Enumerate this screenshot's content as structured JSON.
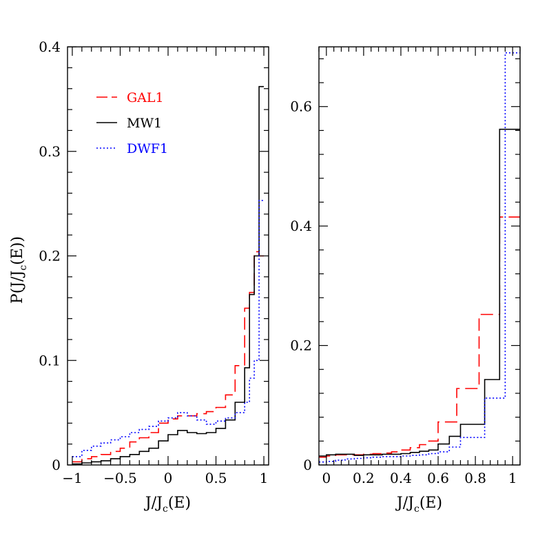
{
  "figure": {
    "ylabel": "P(J/J_c(E))",
    "ylabel_parts": {
      "a": "P(J/J",
      "sub": "c",
      "b": "(E))"
    },
    "xlabel_parts": {
      "a": "J/J",
      "sub": "c",
      "b": "(E)"
    }
  },
  "chart_data": [
    {
      "type": "line",
      "step": true,
      "xlabel": "J/J_c(E)",
      "ylabel": "P(J/J_c(E))",
      "xlim": [
        -1.05,
        1.05
      ],
      "ylim": [
        0,
        0.4
      ],
      "xticks": [
        -1,
        -0.5,
        0,
        0.5,
        1
      ],
      "xtick_labels": [
        "−1",
        "−0.5",
        "0",
        "0.5",
        "1"
      ],
      "yticks": [
        0,
        0.1,
        0.2,
        0.3,
        0.4
      ],
      "ytick_labels": [
        "0",
        "0.1",
        "0.2",
        "0.3",
        "0.4"
      ],
      "legend": {
        "position": "top-left"
      },
      "bin_edges": [
        -1,
        -0.9,
        -0.8,
        -0.7,
        -0.6,
        -0.5,
        -0.4,
        -0.3,
        -0.2,
        -0.1,
        0,
        0.1,
        0.2,
        0.3,
        0.4,
        0.5,
        0.6,
        0.7,
        0.8,
        0.85,
        0.9,
        0.95,
        1.0
      ],
      "series": [
        {
          "name": "GAL1",
          "color": "#ff0000",
          "style": "dashed",
          "values": [
            0.003,
            0.006,
            0.008,
            0.01,
            0.013,
            0.016,
            0.022,
            0.026,
            0.031,
            0.04,
            0.044,
            0.047,
            0.047,
            0.049,
            0.051,
            0.055,
            0.067,
            0.095,
            0.15,
            0.165,
            0.204,
            0.2
          ]
        },
        {
          "name": "MW1",
          "color": "#000000",
          "style": "solid",
          "values": [
            0.001,
            0.002,
            0.003,
            0.004,
            0.006,
            0.008,
            0.01,
            0.013,
            0.016,
            0.023,
            0.029,
            0.033,
            0.031,
            0.03,
            0.031,
            0.035,
            0.043,
            0.06,
            0.093,
            0.163,
            0.2,
            0.362
          ]
        },
        {
          "name": "DWF1",
          "color": "#0000ff",
          "style": "dotted",
          "values": [
            0.008,
            0.014,
            0.018,
            0.021,
            0.024,
            0.027,
            0.031,
            0.034,
            0.037,
            0.042,
            0.045,
            0.05,
            0.047,
            0.043,
            0.039,
            0.042,
            0.045,
            0.05,
            0.06,
            0.083,
            0.1,
            0.253
          ]
        }
      ]
    },
    {
      "type": "line",
      "step": true,
      "xlabel": "J/J_c(E)",
      "xlim": [
        -0.04,
        1.04
      ],
      "ylim": [
        0,
        0.7
      ],
      "xticks": [
        0,
        0.2,
        0.4,
        0.6,
        0.8,
        1
      ],
      "xtick_labels": [
        "0",
        "0.2",
        "0.4",
        "0.6",
        "0.8",
        "1"
      ],
      "yticks": [
        0,
        0.2,
        0.4,
        0.6
      ],
      "ytick_labels": [
        "0",
        "0.2",
        "0.4",
        "0.6"
      ],
      "bin_edges": [
        -0.04,
        0.0,
        0.05,
        0.1,
        0.15,
        0.2,
        0.25,
        0.3,
        0.35,
        0.4,
        0.45,
        0.5,
        0.55,
        0.6,
        0.62,
        0.66,
        0.7,
        0.72,
        0.78,
        0.82,
        0.85,
        0.89,
        0.93,
        0.96,
        1.0,
        1.04
      ],
      "series": [
        {
          "name": "GAL1",
          "color": "#ff0000",
          "style": "dashed",
          "values": [
            0.013,
            0.015,
            0.017,
            0.017,
            0.017,
            0.018,
            0.019,
            0.02,
            0.022,
            0.025,
            0.029,
            0.034,
            0.04,
            0.072,
            0.072,
            0.072,
            0.128,
            0.128,
            0.128,
            0.252,
            0.252,
            0.252,
            0.415,
            0.415,
            0.415
          ]
        },
        {
          "name": "MW1",
          "color": "#000000",
          "style": "solid",
          "values": [
            0.015,
            0.017,
            0.018,
            0.018,
            0.016,
            0.017,
            0.017,
            0.018,
            0.018,
            0.019,
            0.021,
            0.023,
            0.025,
            0.035,
            0.035,
            0.048,
            0.048,
            0.068,
            0.068,
            0.068,
            0.143,
            0.143,
            0.562,
            0.562,
            0.562
          ]
        },
        {
          "name": "DWF1",
          "color": "#0000ff",
          "style": "dotted",
          "values": [
            0.005,
            0.006,
            0.008,
            0.01,
            0.011,
            0.012,
            0.013,
            0.014,
            0.014,
            0.015,
            0.016,
            0.017,
            0.019,
            0.022,
            0.022,
            0.03,
            0.03,
            0.046,
            0.046,
            0.046,
            0.112,
            0.112,
            0.112,
            0.69,
            0.69
          ]
        }
      ]
    }
  ]
}
